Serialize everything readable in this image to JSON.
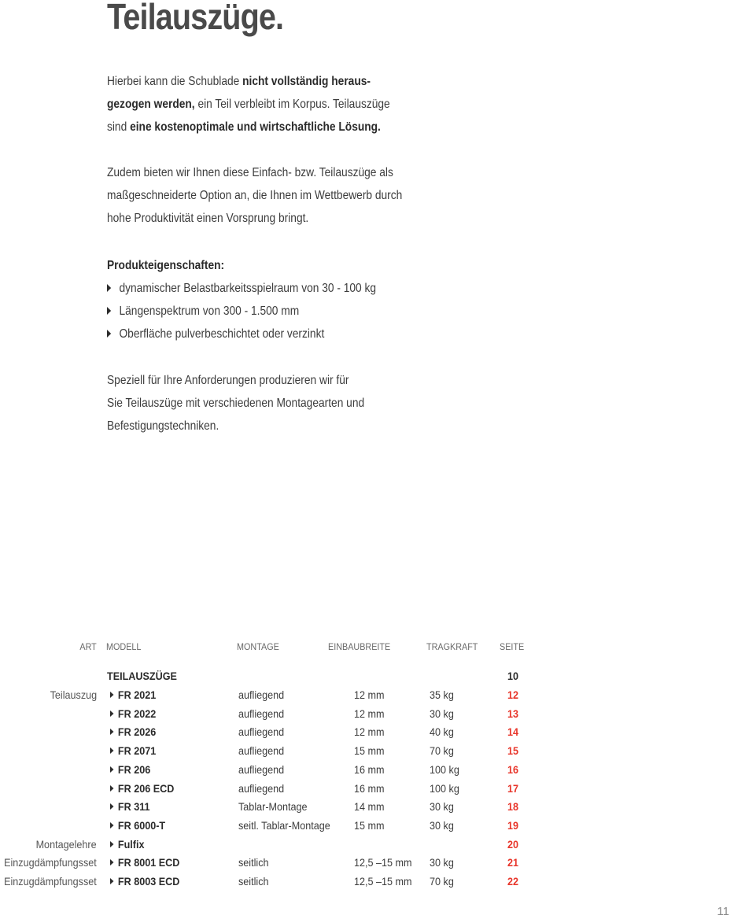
{
  "title": "Teilauszüge.",
  "intro": {
    "l1a": "Hierbei kann die Schublade ",
    "l1b": "nicht vollständig heraus-",
    "l2a": "gezogen werden,",
    "l2b": " ein Teil verbleibt im Korpus. Teilauszüge",
    "l3a": "sind ",
    "l3b": "eine kostenoptimale und wirtschaftliche Lösung."
  },
  "para2": [
    "Zudem bieten wir Ihnen diese Einfach- bzw. Teilauszüge als",
    "maßgeschneiderte Option an, die Ihnen im Wettbewerb durch",
    "hohe Produktivität einen Vorsprung bringt."
  ],
  "properties": {
    "heading": "Produkteigenschaften:",
    "items": [
      "dynamischer Belastbarkeitsspielraum von 30 - 100 kg",
      "Längenspektrum von 300 - 1.500 mm",
      "Oberfläche pulverbeschichtet oder verzinkt"
    ]
  },
  "para3": [
    "Speziell für Ihre Anforderungen produzieren wir für",
    "Sie Teilauszüge mit verschiedenen Montagearten und",
    "Befestigungstechniken."
  ],
  "table": {
    "headers": {
      "art": "ART",
      "modell": "MODELL",
      "montage": "MONTAGE",
      "einbaubreite": "EINBAUBREITE",
      "tragkraft": "TRAGKRAFT",
      "seite": "SEITE"
    },
    "group": {
      "label": "TEILAUSZÜGE",
      "seite": "10"
    },
    "rows": [
      {
        "art": "Teilauszug",
        "modell": "FR 2021",
        "montage": "aufliegend",
        "einbaubreite": "12 mm",
        "tragkraft": "35 kg",
        "seite": "12"
      },
      {
        "art": "",
        "modell": "FR 2022",
        "montage": "aufliegend",
        "einbaubreite": "12 mm",
        "tragkraft": "30 kg",
        "seite": "13"
      },
      {
        "art": "",
        "modell": "FR 2026",
        "montage": "aufliegend",
        "einbaubreite": "12 mm",
        "tragkraft": "40 kg",
        "seite": "14"
      },
      {
        "art": "",
        "modell": "FR 2071",
        "montage": "aufliegend",
        "einbaubreite": "15 mm",
        "tragkraft": "70 kg",
        "seite": "15"
      },
      {
        "art": "",
        "modell": "FR 206",
        "montage": "aufliegend",
        "einbaubreite": "16 mm",
        "tragkraft": "100 kg",
        "seite": "16"
      },
      {
        "art": "",
        "modell": "FR 206 ECD",
        "montage": "aufliegend",
        "einbaubreite": "16 mm",
        "tragkraft": "100 kg",
        "seite": "17"
      },
      {
        "art": "",
        "modell": "FR 311",
        "montage": "Tablar-Montage",
        "einbaubreite": "14 mm",
        "tragkraft": "30 kg",
        "seite": "18"
      },
      {
        "art": "",
        "modell": "FR 6000-T",
        "montage": "seitl. Tablar-Montage",
        "einbaubreite": "15 mm",
        "tragkraft": "30 kg",
        "seite": "19"
      },
      {
        "art": "Montagelehre",
        "modell": "Fulfix",
        "montage": "",
        "einbaubreite": "",
        "tragkraft": "",
        "seite": "20"
      },
      {
        "art": "Einzugdämpfungsset",
        "modell": "FR 8001 ECD",
        "montage": "seitlich",
        "einbaubreite": "12,5 –15 mm",
        "tragkraft": "30 kg",
        "seite": "21"
      },
      {
        "art": "Einzugdämpfungsset",
        "modell": "FR 8003 ECD",
        "montage": "seitlich",
        "einbaubreite": "12,5 –15 mm",
        "tragkraft": "70 kg",
        "seite": "22"
      }
    ]
  },
  "page_number": "11",
  "colors": {
    "accent": "#e8352a",
    "text": "#3c3c3c"
  }
}
